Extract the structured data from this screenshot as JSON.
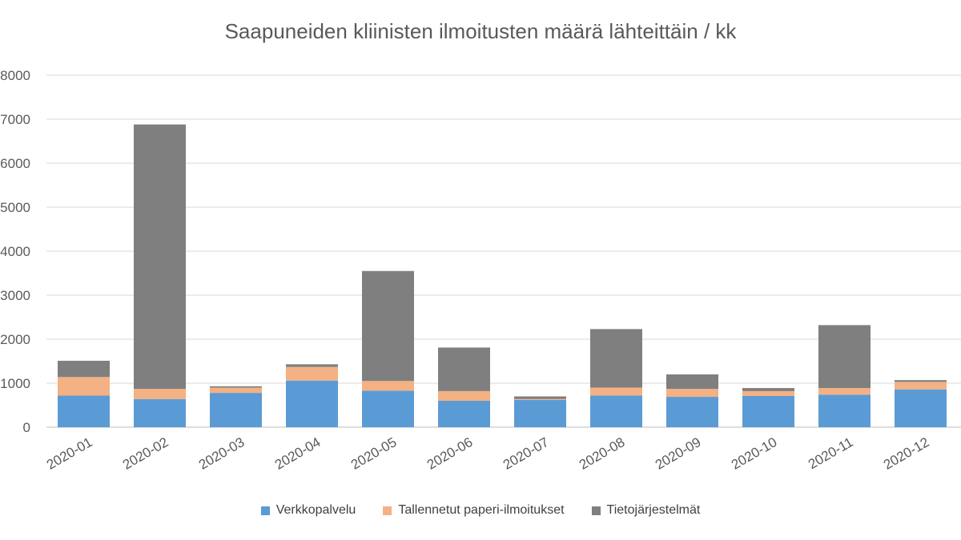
{
  "chart_data": {
    "type": "bar",
    "stacked": true,
    "title": "Saapuneiden kliinisten ilmoitusten määrä lähteittäin / kk",
    "xlabel": "",
    "ylabel": "",
    "ylim": [
      0,
      8000
    ],
    "yticks": [
      0,
      1000,
      2000,
      3000,
      4000,
      5000,
      6000,
      7000,
      8000
    ],
    "grid": true,
    "legend_position": "bottom",
    "categories": [
      "2020-01",
      "2020-02",
      "2020-03",
      "2020-04",
      "2020-05",
      "2020-06",
      "2020-07",
      "2020-08",
      "2020-09",
      "2020-10",
      "2020-11",
      "2020-12"
    ],
    "series": [
      {
        "name": "Verkkopalvelu",
        "color": "#5b9bd5",
        "values": [
          720,
          640,
          780,
          1060,
          830,
          600,
          620,
          720,
          690,
          710,
          740,
          860
        ]
      },
      {
        "name": "Tallennetut paperi-ilmoitukset",
        "color": "#f4b183",
        "values": [
          420,
          230,
          120,
          310,
          220,
          220,
          20,
          180,
          180,
          110,
          150,
          170
        ]
      },
      {
        "name": "Tietojärjestelmät",
        "color": "#7f7f7f",
        "values": [
          370,
          6010,
          30,
          60,
          2500,
          990,
          60,
          1330,
          330,
          70,
          1430,
          40
        ]
      }
    ]
  }
}
